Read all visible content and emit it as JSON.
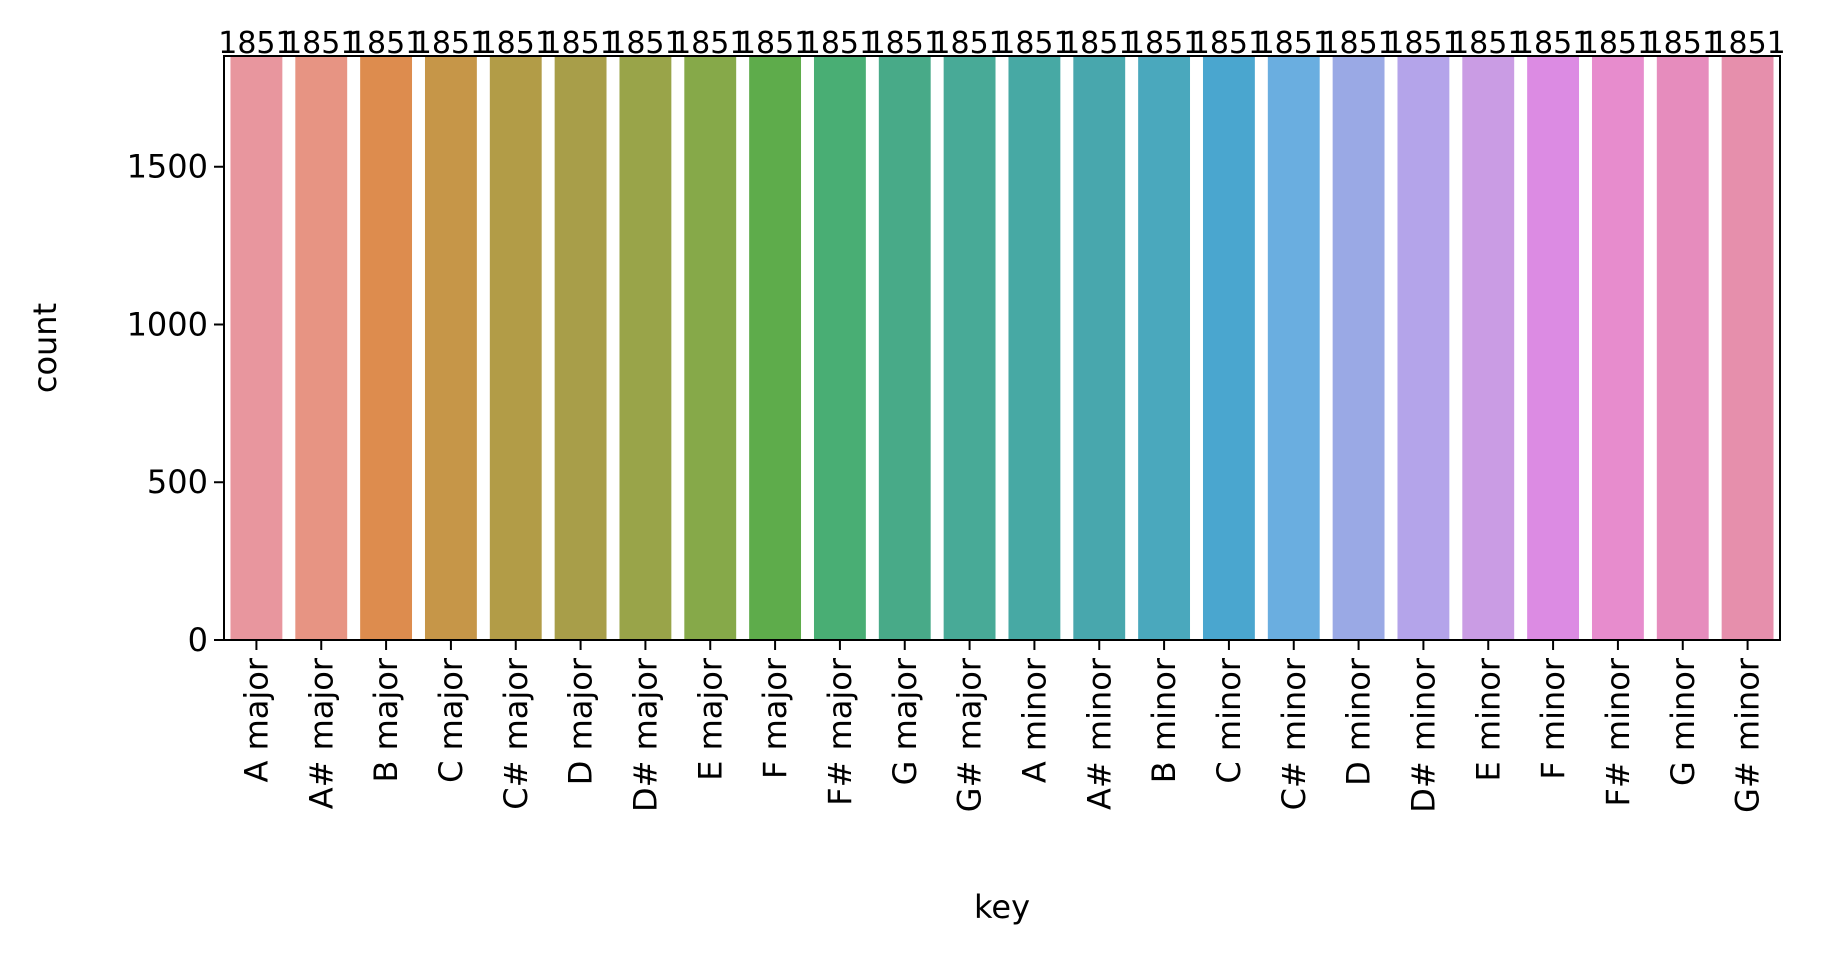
{
  "chart_data": {
    "type": "bar",
    "categories": [
      "A major",
      "A# major",
      "B major",
      "C major",
      "C# major",
      "D major",
      "D# major",
      "E major",
      "F major",
      "F# major",
      "G major",
      "G# major",
      "A minor",
      "A# minor",
      "B minor",
      "C minor",
      "C# minor",
      "D minor",
      "D# minor",
      "E minor",
      "F minor",
      "F# minor",
      "G minor",
      "G# minor"
    ],
    "values": [
      1851,
      1851,
      1851,
      1851,
      1851,
      1851,
      1851,
      1851,
      1851,
      1851,
      1851,
      1851,
      1851,
      1851,
      1851,
      1851,
      1851,
      1851,
      1851,
      1851,
      1851,
      1851,
      1851,
      1851
    ],
    "data_labels": [
      "1851",
      "1851",
      "1851",
      "1851",
      "1851",
      "1851",
      "1851",
      "1851",
      "1851",
      "1851",
      "1851",
      "1851",
      "1851",
      "1851",
      "1851",
      "1851",
      "1851",
      "1851",
      "1851",
      "1851",
      "1851",
      "1851",
      "1851",
      "1851"
    ],
    "colors": [
      "#e8969e",
      "#e79483",
      "#dd8c4e",
      "#c69648",
      "#b29c47",
      "#a89e49",
      "#99a449",
      "#86a949",
      "#5eac4b",
      "#49ae74",
      "#48aa88",
      "#48aa97",
      "#47a9a4",
      "#48a7ad",
      "#4aa8bd",
      "#4aa6cf",
      "#6aaee0",
      "#9aa9e5",
      "#b4a4ea",
      "#ca9ce4",
      "#dc8be3",
      "#e78ccd",
      "#e68cbd",
      "#e68fac"
    ],
    "xlabel": "key",
    "ylabel": "count",
    "ylim": [
      0,
      1851
    ],
    "yticks": [
      0,
      500,
      1000,
      1500
    ],
    "ytick_labels": [
      "0",
      "500",
      "1000",
      "1500"
    ],
    "grid": false,
    "legend": "none"
  }
}
